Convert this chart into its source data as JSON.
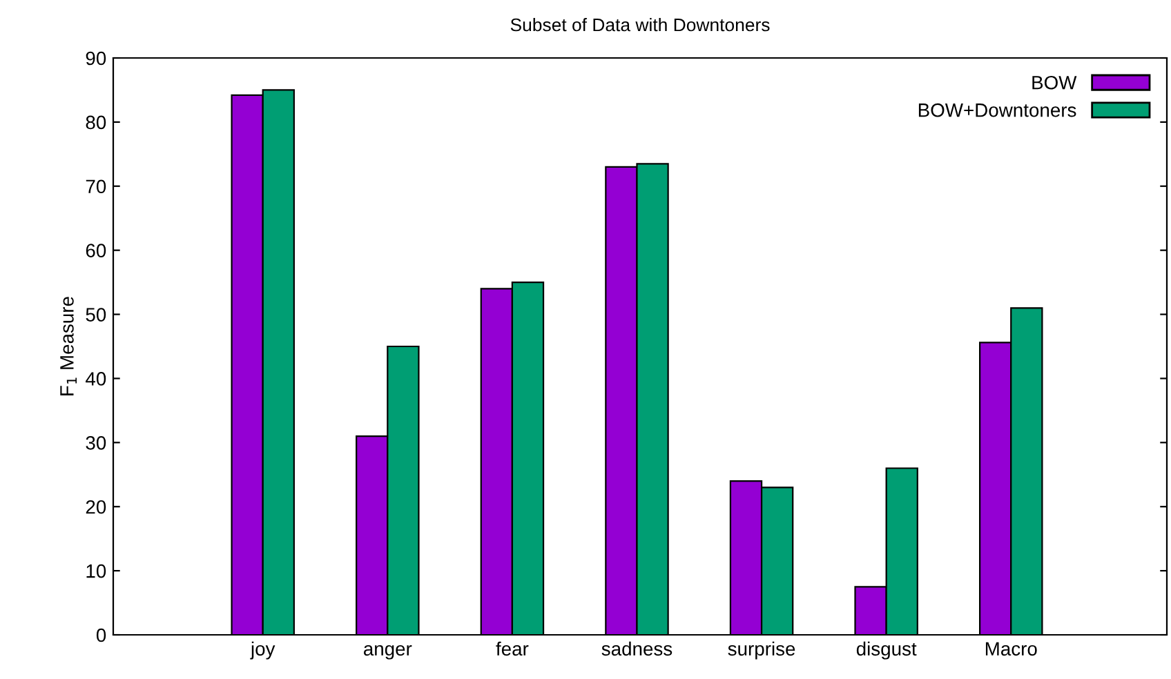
{
  "chart_data": {
    "type": "bar",
    "title": "Subset of Data with Downtoners",
    "ylabel": "F$_{1}$ Measure",
    "categories": [
      null,
      "joy",
      "anger",
      "fear",
      "sadness",
      "surprise",
      "disgust",
      "Macro"
    ],
    "series": [
      {
        "name": "BOW",
        "color": "#9400d3",
        "values": [
          null,
          84.2,
          31,
          54,
          73,
          24,
          7.5,
          45.6
        ]
      },
      {
        "name": "BOW+Downtoners",
        "color": "#009e73",
        "values": [
          null,
          85,
          45,
          55,
          73.5,
          23,
          26,
          51
        ]
      }
    ],
    "ylim": [
      0,
      90
    ],
    "yticks": [
      0,
      10,
      20,
      30,
      40,
      50,
      60,
      70,
      80,
      90
    ],
    "grid": false,
    "legend": "top right"
  }
}
